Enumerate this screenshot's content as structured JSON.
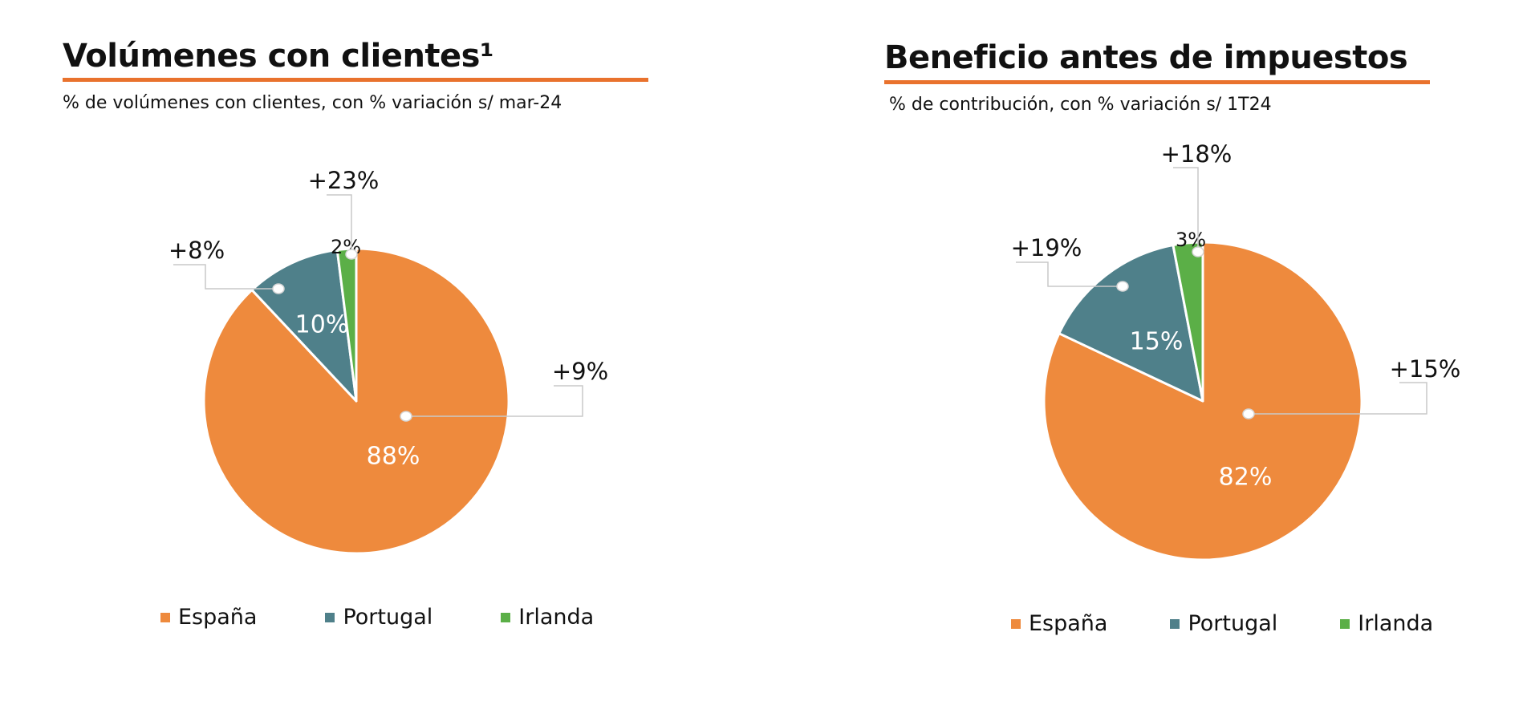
{
  "colors": {
    "accent": "#E9722D",
    "spain": "#EE8A3D",
    "portugal": "#4F808A",
    "ireland": "#5BAF47",
    "leader": "#C9C9C9"
  },
  "chart_data": [
    {
      "type": "pie",
      "title": "Volúmenes con clientes¹",
      "subtitle": "% de volúmenes con clientes, con % variación s/ mar-24",
      "legend_position": "bottom",
      "slices": [
        {
          "name": "España",
          "value": 88,
          "label": "88%",
          "change": "+9%",
          "color": "#EE8A3D"
        },
        {
          "name": "Portugal",
          "value": 10,
          "label": "10%",
          "change": "+8%",
          "color": "#4F808A"
        },
        {
          "name": "Irlanda",
          "value": 2,
          "label": "2%",
          "change": "+23%",
          "color": "#5BAF47"
        }
      ]
    },
    {
      "type": "pie",
      "title": "Beneficio antes de impuestos",
      "subtitle": "% de contribución, con % variación s/ 1T24",
      "legend_position": "bottom",
      "slices": [
        {
          "name": "España",
          "value": 82,
          "label": "82%",
          "change": "+15%",
          "color": "#EE8A3D"
        },
        {
          "name": "Portugal",
          "value": 15,
          "label": "15%",
          "change": "+19%",
          "color": "#4F808A"
        },
        {
          "name": "Irlanda",
          "value": 3,
          "label": "3%",
          "change": "+18%",
          "color": "#5BAF47"
        }
      ]
    }
  ]
}
